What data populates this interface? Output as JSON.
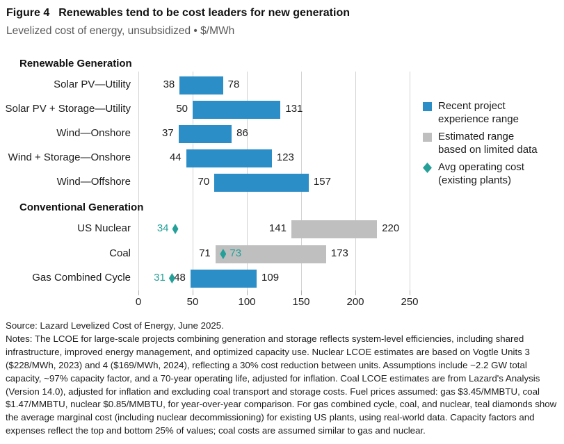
{
  "title": {
    "figure": "Figure 4",
    "text": "Renewables tend to be cost leaders for new generation"
  },
  "subtitle": "Levelized cost of energy, unsubsidized • $/MWh",
  "colors": {
    "blue": "#2c8ec7",
    "gray": "#bfbfbf",
    "teal": "#24a098",
    "gridline": "#d2d2d2",
    "tick": "#b0b0b0"
  },
  "chart_data": {
    "type": "bar",
    "orientation": "horizontal",
    "units": "$/MWh",
    "value_axis": {
      "min": 0,
      "max": 250,
      "ticks": [
        0,
        50,
        100,
        150,
        200,
        250
      ]
    },
    "sections": [
      {
        "header": "Renewable Generation",
        "rows": [
          {
            "label": "Solar PV—Utility",
            "color": "blue",
            "min": 38,
            "max": 78,
            "diamond": null
          },
          {
            "label": "Solar PV + Storage—Utility",
            "color": "blue",
            "min": 50,
            "max": 131,
            "diamond": null
          },
          {
            "label": "Wind—Onshore",
            "color": "blue",
            "min": 37,
            "max": 86,
            "diamond": null
          },
          {
            "label": "Wind + Storage—Onshore",
            "color": "blue",
            "min": 44,
            "max": 123,
            "diamond": null
          },
          {
            "label": "Wind—Offshore",
            "color": "blue",
            "min": 70,
            "max": 157,
            "diamond": null
          }
        ]
      },
      {
        "header": "Conventional Generation",
        "rows": [
          {
            "label": "US Nuclear",
            "color": "gray",
            "min": 141,
            "max": 220,
            "diamond": {
              "value": 34,
              "label": "34",
              "side": "left"
            }
          },
          {
            "label": "Coal",
            "color": "gray",
            "min": 71,
            "max": 173,
            "diamond": {
              "value": 73,
              "label": "73",
              "side": "right"
            }
          },
          {
            "label": "Gas Combined Cycle",
            "color": "blue",
            "min": 48,
            "max": 109,
            "diamond": {
              "value": 31,
              "label": "31",
              "side": "left"
            }
          }
        ]
      }
    ],
    "legend": [
      {
        "swatch": "blue-square",
        "lines": [
          "Recent project",
          "experience range"
        ]
      },
      {
        "swatch": "gray-square",
        "lines": [
          "Estimated range",
          "based on limited data"
        ]
      },
      {
        "swatch": "teal-diamond",
        "lines": [
          "Avg operating cost",
          "(existing plants)"
        ]
      }
    ]
  },
  "source": "Source: Lazard Levelized Cost of Energy, June 2025.",
  "notes": "Notes: The LCOE for large-scale projects combining generation and storage reflects system-level efficiencies, including shared infrastructure, improved energy management, and optimized capacity use. Nuclear LCOE estimates are based on Vogtle Units 3 ($228/MWh, 2023) and 4 ($169/MWh, 2024), reflecting a 30% cost reduction between units. Assumptions include ~2.2 GW total capacity, ~97% capacity factor, and a 70-year operating life, adjusted for inflation. Coal LCOE estimates are from Lazard's Analysis (Version 14.0), adjusted for inflation and excluding coal transport and storage costs. Fuel prices assumed: gas $3.45/MMBTU, coal $1.47/MMBTU, nuclear $0.85/MMBTU, for year-over-year comparison. For gas combined cycle, coal, and nuclear, teal diamonds show the average marginal cost (including nuclear decommissioning) for existing US plants, using real-world data. Capacity factors and expenses reflect the top and bottom 25% of values; coal costs are assumed similar to gas and nuclear."
}
